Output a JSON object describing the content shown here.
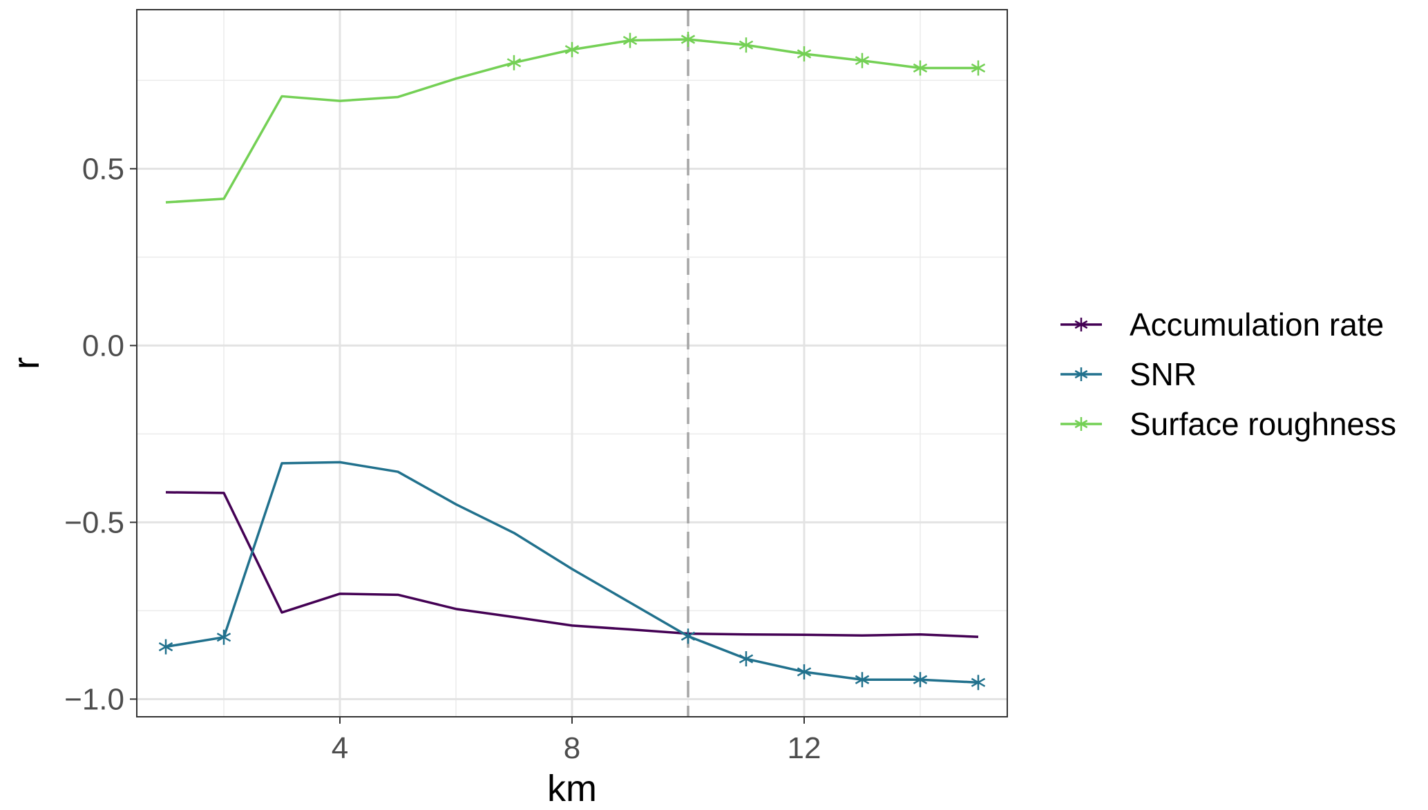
{
  "chart_data": {
    "type": "line",
    "xlabel": "km",
    "ylabel": "r",
    "xlim": [
      0.5,
      15.5
    ],
    "ylim": [
      -1.05,
      0.95
    ],
    "x_ticks": [
      4,
      8,
      12
    ],
    "x_tick_labels": [
      "4",
      "8",
      "12"
    ],
    "x_minor_gridlines": [
      2,
      6,
      10,
      14
    ],
    "y_ticks": [
      -1.0,
      -0.5,
      0.0,
      0.5
    ],
    "y_tick_labels": [
      "−1.0",
      "−0.5",
      "0.0",
      "0.5"
    ],
    "y_minor_gridlines": [
      -0.75,
      -0.25,
      0.25,
      0.75
    ],
    "grid": true,
    "legend_position": "right",
    "reference_line": {
      "x": 10,
      "style": "dashed",
      "color": "#a6a6a6"
    },
    "x": [
      1,
      2,
      3,
      4,
      5,
      6,
      7,
      8,
      9,
      10,
      11,
      12,
      13,
      14,
      15
    ],
    "series": [
      {
        "name": "Accumulation rate",
        "color": "#440154",
        "values": [
          -0.415,
          -0.417,
          -0.755,
          -0.702,
          -0.705,
          -0.745,
          -0.768,
          -0.792,
          -0.803,
          -0.815,
          -0.817,
          -0.818,
          -0.82,
          -0.817,
          -0.824
        ],
        "marker_x": []
      },
      {
        "name": "SNR",
        "color": "#21718d",
        "values": [
          -0.852,
          -0.825,
          -0.333,
          -0.33,
          -0.357,
          -0.449,
          -0.53,
          -0.632,
          -0.727,
          -0.822,
          -0.886,
          -0.923,
          -0.945,
          -0.945,
          -0.953
        ],
        "marker_x": [
          1,
          2,
          10,
          11,
          12,
          13,
          14,
          15
        ]
      },
      {
        "name": "Surface roughness",
        "color": "#74d055",
        "values": [
          0.405,
          0.415,
          0.705,
          0.692,
          0.703,
          0.755,
          0.8,
          0.837,
          0.863,
          0.866,
          0.85,
          0.825,
          0.806,
          0.785,
          0.785
        ],
        "marker_x": [
          7,
          8,
          9,
          10,
          11,
          12,
          13,
          14,
          15
        ]
      }
    ]
  }
}
